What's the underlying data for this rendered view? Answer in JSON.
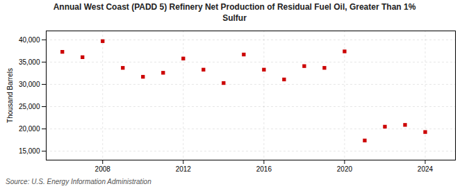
{
  "chart_data": {
    "type": "scatter",
    "title": "Annual West Coast (PADD 5) Refinery Net Production of Residual Fuel Oil, Greater Than 1%\nSulfur",
    "ylabel": "Thousand Barrels",
    "source": "Source: U.S. Energy Information Administration",
    "x": [
      2006,
      2007,
      2008,
      2009,
      2010,
      2011,
      2012,
      2013,
      2014,
      2015,
      2016,
      2017,
      2018,
      2019,
      2020,
      2021,
      2022,
      2023,
      2024
    ],
    "values": [
      37300,
      36100,
      39700,
      33700,
      31700,
      32600,
      35800,
      33300,
      30300,
      36700,
      33300,
      31100,
      34100,
      33700,
      37400,
      17400,
      20500,
      20900,
      19300
    ],
    "color": "#cc0000",
    "marker": "square",
    "xlim": [
      2005.2,
      2025.5
    ],
    "xticks": [
      2008,
      2012,
      2016,
      2020,
      2024
    ],
    "ylim": [
      13000,
      42000
    ],
    "yticks": [
      {
        "value": 15000,
        "label": "15,000"
      },
      {
        "value": 20000,
        "label": "20,000"
      },
      {
        "value": 25000,
        "label": "25,000"
      },
      {
        "value": 30000,
        "label": "30,000"
      },
      {
        "value": 35000,
        "label": "35,000"
      },
      {
        "value": 40000,
        "label": "40,000"
      }
    ],
    "grid": true
  }
}
